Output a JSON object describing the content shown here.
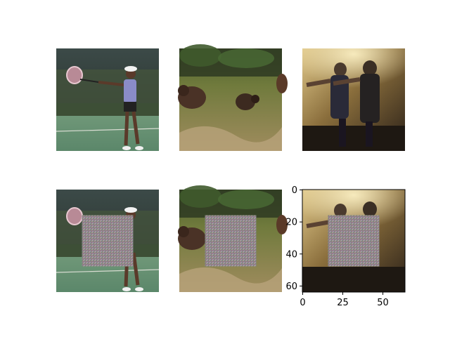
{
  "chart_data": {
    "type": "image_grid",
    "rows": 2,
    "cols": 3,
    "panels": [
      {
        "row": 0,
        "col": 0,
        "content": "tennis-player",
        "patch": false,
        "axes": false
      },
      {
        "row": 0,
        "col": 1,
        "content": "bears-in-field",
        "patch": false,
        "axes": false
      },
      {
        "row": 0,
        "col": 2,
        "content": "people-playing-in-living-room",
        "patch": false,
        "axes": false
      },
      {
        "row": 1,
        "col": 0,
        "content": "tennis-player",
        "patch": true,
        "axes": false
      },
      {
        "row": 1,
        "col": 1,
        "content": "bears-in-field",
        "patch": true,
        "axes": false
      },
      {
        "row": 1,
        "col": 2,
        "content": "people-playing-in-living-room",
        "patch": true,
        "axes": true
      }
    ],
    "image_size": [
      64,
      64
    ],
    "patch_region": {
      "x": [
        16,
        48
      ],
      "y": [
        16,
        48
      ]
    },
    "axes": {
      "xlim": [
        0,
        64
      ],
      "ylim": [
        64,
        0
      ],
      "xticks": [
        0,
        25,
        50
      ],
      "yticks": [
        0,
        20,
        40,
        60
      ],
      "xtick_labels": [
        "0",
        "25",
        "50"
      ],
      "ytick_labels": [
        "0",
        "20",
        "40",
        "60"
      ]
    }
  },
  "colors": {
    "court": "#5f8a6a",
    "grass": "#8a7a4a",
    "room": "#3a2e22",
    "patch": "#8c7f86"
  }
}
